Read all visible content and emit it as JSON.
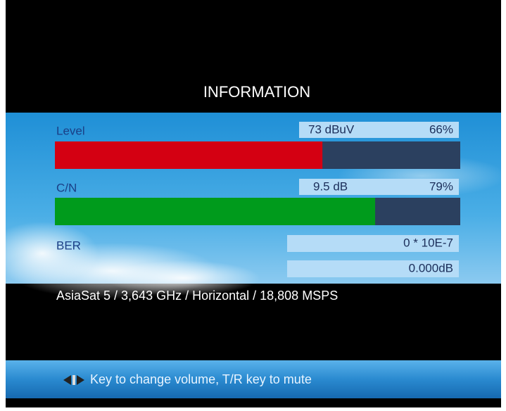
{
  "header": {
    "title": "INFORMATION"
  },
  "level": {
    "label": "Level",
    "reading": "73 dBuV",
    "percent": 66,
    "percent_label": "66%"
  },
  "cn": {
    "label": "C/N",
    "reading": "9.5 dB",
    "percent": 79,
    "percent_label": "79%"
  },
  "ber": {
    "label": "BER",
    "reading": "0 * 10E-7",
    "extra": "0.000dB"
  },
  "transponder": "AsiaSat 5 / 3,643 GHz / Horizontal / 18,808 MSPS",
  "hint": "Key to change volume, T/R key to mute"
}
